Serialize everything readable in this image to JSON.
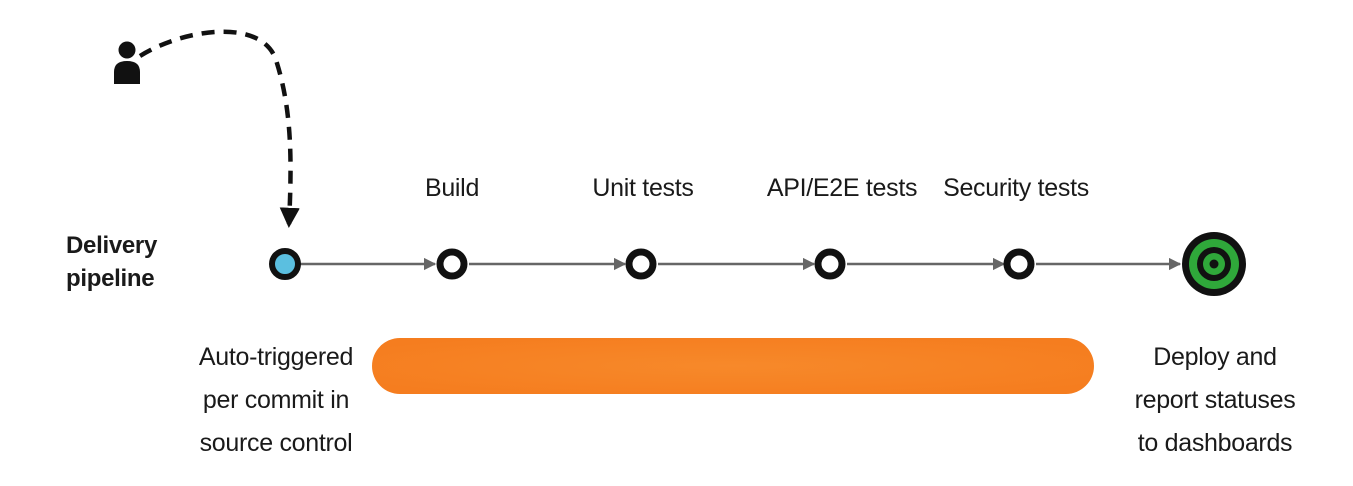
{
  "pipeline_label": [
    "Delivery",
    "pipeline"
  ],
  "start_caption": [
    "Auto-triggered",
    "per commit in",
    "source control"
  ],
  "stages": [
    "Build",
    "Unit tests",
    "API/E2E tests",
    "Security tests"
  ],
  "end_caption": [
    "Deploy and",
    "report statuses",
    "to dashboards"
  ],
  "icons": {
    "developer": "person-icon",
    "start_node": "trigger-node-icon",
    "end_node": "target-icon"
  },
  "colors": {
    "start_node_fill": "#5bbfe0",
    "end_node_ring": "#2fa83a",
    "automation_bar": "#f5821f",
    "connector": "#666666",
    "node_outline": "#111111"
  }
}
